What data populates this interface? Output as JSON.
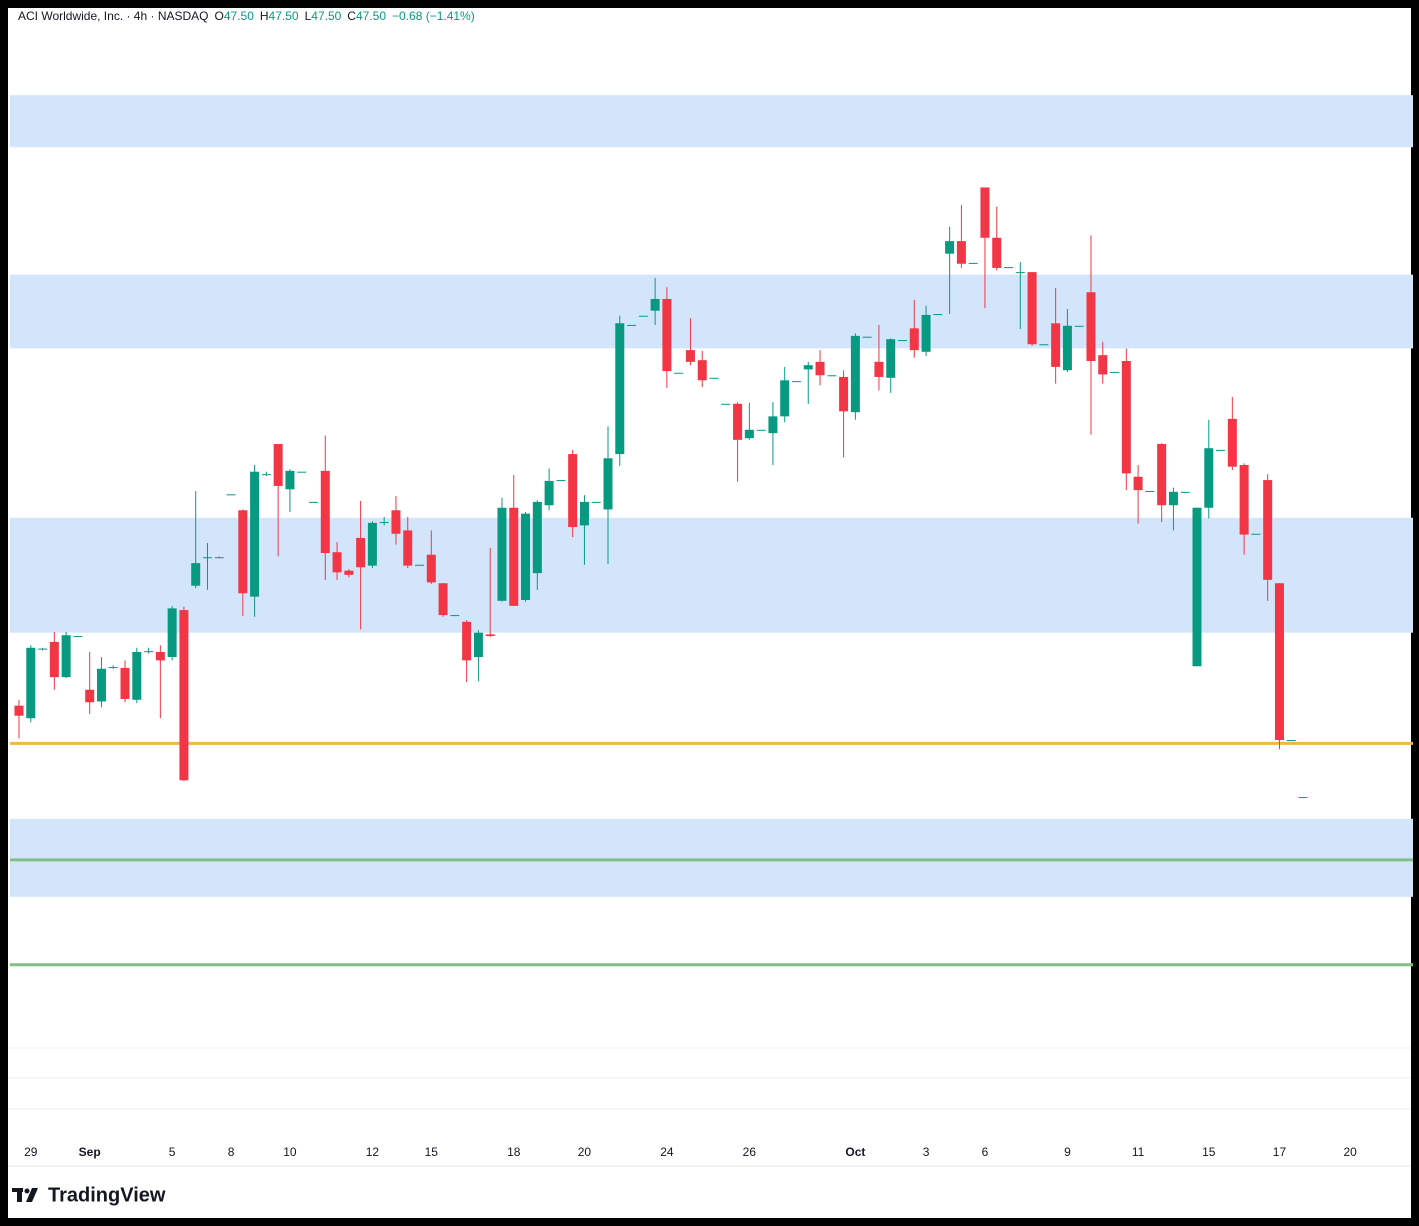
{
  "chart_data": {
    "type": "candlestick",
    "title": "ACI Worldwide, Inc. · 4h · NASDAQ",
    "ohlc_legend": [
      {
        "key": "O",
        "value": "47.50"
      },
      {
        "key": "H",
        "value": "47.50"
      },
      {
        "key": "L",
        "value": "47.50"
      },
      {
        "key": "C",
        "value": "47.50"
      }
    ],
    "change": "−0.68 (−1.41%)",
    "brand": "TradingView",
    "up_color": "#089981",
    "down_color": "#f23645",
    "ylim": [
      43.41,
      56.91
    ],
    "categories": [
      null,
      "29",
      null,
      null,
      null,
      null,
      "Sep",
      null,
      null,
      null,
      null,
      null,
      null,
      "5",
      null,
      null,
      null,
      null,
      "8",
      null,
      null,
      null,
      null,
      "10",
      null,
      null,
      null,
      null,
      null,
      null,
      "12",
      null,
      null,
      null,
      null,
      "15",
      null,
      null,
      null,
      null,
      null,
      null,
      "18",
      null,
      null,
      null,
      null,
      null,
      "20",
      null,
      null,
      null,
      null,
      null,
      null,
      "24",
      null,
      null,
      null,
      null,
      null,
      null,
      "26",
      null,
      null,
      null,
      null,
      null,
      null,
      null,
      null,
      "Oct",
      null,
      null,
      null,
      null,
      null,
      "3",
      null,
      null,
      null,
      null,
      "6",
      null,
      null,
      null,
      null,
      null,
      null,
      "9",
      null,
      null,
      null,
      null,
      null,
      "11",
      null,
      null,
      null,
      null,
      null,
      "15",
      null,
      null,
      null,
      null,
      null,
      "17",
      null,
      null,
      null,
      null,
      null,
      "20"
    ],
    "open": [
      48.59,
      48.44,
      49.27,
      49.35,
      48.93,
      49.42,
      48.78,
      48.64,
      49.05,
      49.04,
      48.66,
      49.24,
      49.23,
      49.17,
      49.73,
      50.02,
      50.36,
      50.36,
      51.11,
      50.92,
      49.89,
      51.35,
      51.71,
      51.17,
      51.38,
      51.02,
      51.39,
      50.42,
      50.2,
      50.59,
      50.26,
      50.78,
      50.92,
      50.68,
      50.27,
      50.39,
      50.05,
      49.67,
      49.59,
      49.17,
      49.44,
      49.84,
      50.95,
      49.85,
      50.17,
      50.98,
      51.28,
      51.59,
      50.74,
      51.02,
      50.93,
      51.59,
      53.13,
      53.24,
      53.3,
      53.44,
      52.56,
      52.83,
      52.71,
      52.5,
      52.19,
      52.19,
      51.78,
      51.88,
      51.84,
      52.04,
      52.46,
      52.6,
      52.69,
      52.53,
      52.51,
      52.09,
      52.99,
      52.69,
      52.5,
      52.95,
      53.09,
      52.81,
      53.26,
      53.98,
      54.13,
      53.87,
      54.77,
      54.17,
      53.82,
      53.76,
      53.76,
      52.9,
      53.15,
      52.59,
      53.12,
      53.52,
      52.77,
      52.57,
      52.7,
      51.32,
      51.15,
      51.71,
      50.98,
      51.14,
      49.06,
      50.95,
      51.64,
      52.01,
      51.46,
      50.64,
      51.28,
      50.05,
      48.18,
      47.5,
      null,
      null,
      null,
      null
    ],
    "high": [
      48.66,
      49.31,
      49.28,
      49.47,
      49.47,
      49.42,
      49.23,
      49.17,
      49.07,
      49.13,
      49.28,
      49.28,
      49.31,
      49.78,
      49.77,
      51.15,
      50.53,
      50.37,
      51.11,
      50.93,
      51.46,
      51.38,
      51.71,
      51.41,
      51.38,
      51.02,
      51.81,
      50.54,
      50.22,
      51.03,
      50.79,
      50.84,
      51.09,
      50.84,
      50.27,
      50.68,
      50.05,
      49.67,
      49.61,
      49.49,
      50.47,
      51.07,
      51.34,
      50.9,
      51.04,
      51.42,
      51.28,
      51.64,
      51.1,
      51.02,
      51.92,
      53.24,
      53.13,
      53.24,
      53.69,
      53.58,
      52.56,
      53.21,
      52.82,
      52.5,
      52.19,
      52.21,
      52.2,
      51.88,
      52.21,
      52.63,
      52.46,
      52.69,
      52.83,
      52.53,
      52.59,
      53.03,
      52.99,
      53.13,
      52.97,
      52.95,
      53.43,
      53.36,
      53.26,
      54.3,
      54.56,
      53.87,
      54.77,
      54.54,
      53.82,
      53.88,
      53.76,
      52.9,
      53.57,
      53.32,
      53.12,
      54.2,
      52.93,
      52.57,
      52.85,
      51.46,
      51.15,
      51.72,
      51.19,
      51.14,
      50.95,
      52.0,
      51.64,
      52.27,
      51.48,
      50.64,
      51.35,
      50.05,
      48.18,
      47.5,
      null,
      null,
      null,
      null
    ],
    "low": [
      48.2,
      48.39,
      49.25,
      48.78,
      48.92,
      49.42,
      48.49,
      48.57,
      49.03,
      48.63,
      48.62,
      49.21,
      48.44,
      49.13,
      47.69,
      49.99,
      49.97,
      50.35,
      51.11,
      49.66,
      49.65,
      51.33,
      50.37,
      50.9,
      51.38,
      51.02,
      50.09,
      50.09,
      50.12,
      49.5,
      50.23,
      50.74,
      50.51,
      50.23,
      50.27,
      50.04,
      49.65,
      49.67,
      48.87,
      48.88,
      49.41,
      49.83,
      49.78,
      49.83,
      49.97,
      50.92,
      51.28,
      50.6,
      50.27,
      51.02,
      50.28,
      51.45,
      53.13,
      53.24,
      53.13,
      52.38,
      52.56,
      52.65,
      52.39,
      52.5,
      52.19,
      51.26,
      51.76,
      51.88,
      51.46,
      51.97,
      52.46,
      52.19,
      52.41,
      52.53,
      51.55,
      52.0,
      52.99,
      52.35,
      52.32,
      52.95,
      52.74,
      52.76,
      53.26,
      53.26,
      53.81,
      53.87,
      53.33,
      53.78,
      53.82,
      53.08,
      52.88,
      52.9,
      52.43,
      52.57,
      53.12,
      51.82,
      52.43,
      52.57,
      51.16,
      50.76,
      51.15,
      50.78,
      50.68,
      51.14,
      49.06,
      50.82,
      51.64,
      51.4,
      50.39,
      50.64,
      49.84,
      48.07,
      48.18,
      47.5,
      null,
      null,
      null,
      null
    ],
    "close": [
      48.47,
      49.28,
      49.27,
      48.93,
      49.43,
      49.42,
      48.63,
      49.03,
      49.05,
      48.67,
      49.23,
      49.24,
      49.13,
      49.75,
      47.7,
      50.29,
      50.36,
      50.36,
      51.11,
      49.93,
      51.38,
      51.35,
      51.21,
      51.39,
      51.38,
      51.02,
      50.41,
      50.18,
      50.15,
      50.24,
      50.77,
      50.78,
      50.64,
      50.26,
      50.27,
      50.06,
      49.67,
      49.67,
      49.13,
      49.46,
      49.42,
      50.95,
      49.78,
      50.88,
      51.02,
      51.27,
      51.28,
      50.72,
      51.02,
      51.02,
      51.54,
      53.15,
      53.13,
      53.24,
      53.44,
      52.58,
      52.56,
      52.69,
      52.47,
      52.5,
      52.19,
      51.76,
      51.88,
      51.88,
      52.04,
      52.47,
      52.46,
      52.65,
      52.53,
      52.53,
      52.1,
      53.0,
      52.99,
      52.51,
      52.96,
      52.95,
      52.83,
      53.25,
      53.26,
      54.13,
      53.86,
      53.87,
      54.17,
      53.81,
      53.82,
      53.76,
      52.9,
      52.9,
      52.63,
      53.12,
      53.12,
      52.7,
      52.54,
      52.57,
      51.36,
      51.16,
      51.15,
      50.98,
      51.14,
      51.14,
      50.95,
      51.66,
      51.64,
      51.44,
      50.63,
      50.64,
      50.09,
      48.18,
      48.18,
      47.5,
      null,
      null,
      null,
      null
    ],
    "zones": [
      [
        55.87,
        55.25
      ],
      [
        53.73,
        52.85
      ],
      [
        50.83,
        49.46
      ],
      [
        47.24,
        46.31
      ]
    ],
    "zone_color": "#d3e5fb",
    "levels": [
      {
        "value": 48.14,
        "color": "#f2b54a"
      },
      {
        "value": 46.75,
        "color": "#81c085"
      },
      {
        "value": 45.5,
        "color": "#81c085"
      }
    ]
  }
}
